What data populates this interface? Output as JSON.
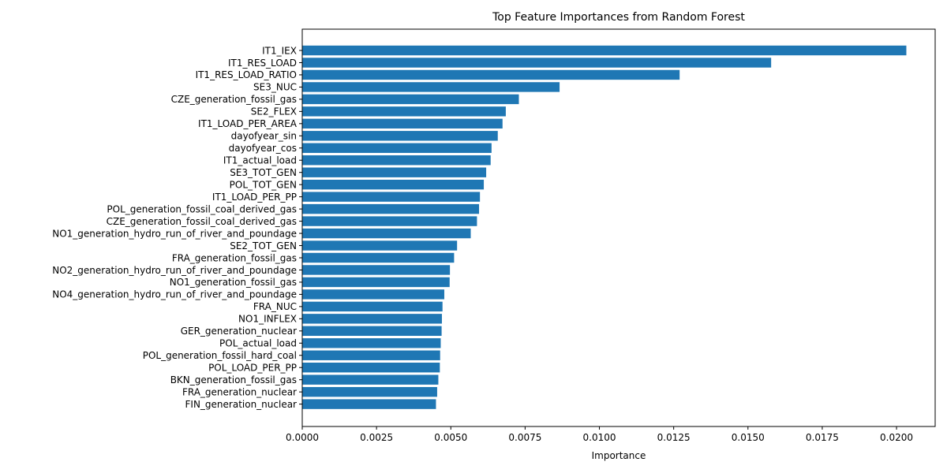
{
  "chart_data": {
    "type": "bar",
    "orientation": "horizontal",
    "title": "Top Feature Importances from Random Forest",
    "xlabel": "Importance",
    "ylabel": "",
    "xlim": [
      0,
      0.0213
    ],
    "xticks": [
      0.0,
      0.0025,
      0.005,
      0.0075,
      0.01,
      0.0125,
      0.015,
      0.0175,
      0.02
    ],
    "xtick_labels": [
      "0.0000",
      "0.0025",
      "0.0050",
      "0.0075",
      "0.0100",
      "0.0125",
      "0.0150",
      "0.0175",
      "0.0200"
    ],
    "grid": false,
    "bar_color": "#1f77b4",
    "categories": [
      "IT1_IEX",
      "IT1_RES_LOAD",
      "IT1_RES_LOAD_RATIO",
      "SE3_NUC",
      "CZE_generation_fossil_gas",
      "SE2_FLEX",
      "IT1_LOAD_PER_AREA",
      "dayofyear_sin",
      "dayofyear_cos",
      "IT1_actual_load",
      "SE3_TOT_GEN",
      "POL_TOT_GEN",
      "IT1_LOAD_PER_PP",
      "POL_generation_fossil_coal_derived_gas",
      "CZE_generation_fossil_coal_derived_gas",
      "NO1_generation_hydro_run_of_river_and_poundage",
      "SE2_TOT_GEN",
      "FRA_generation_fossil_gas",
      "NO2_generation_hydro_run_of_river_and_poundage",
      "NO1_generation_fossil_gas",
      "NO4_generation_hydro_run_of_river_and_poundage",
      "FRA_NUC",
      "NO1_INFLEX",
      "GER_generation_nuclear",
      "POL_actual_load",
      "POL_generation_fossil_hard_coal",
      "POL_LOAD_PER_PP",
      "BKN_generation_fossil_gas",
      "FRA_generation_nuclear",
      "FIN_generation_nuclear"
    ],
    "values": [
      0.02033,
      0.01578,
      0.0127,
      0.00866,
      0.00729,
      0.00685,
      0.00674,
      0.00658,
      0.00637,
      0.00634,
      0.00619,
      0.00611,
      0.00598,
      0.00595,
      0.00588,
      0.00567,
      0.00521,
      0.00511,
      0.00497,
      0.00496,
      0.00478,
      0.00472,
      0.0047,
      0.00469,
      0.00466,
      0.00464,
      0.00463,
      0.00458,
      0.00454,
      0.0045
    ]
  }
}
